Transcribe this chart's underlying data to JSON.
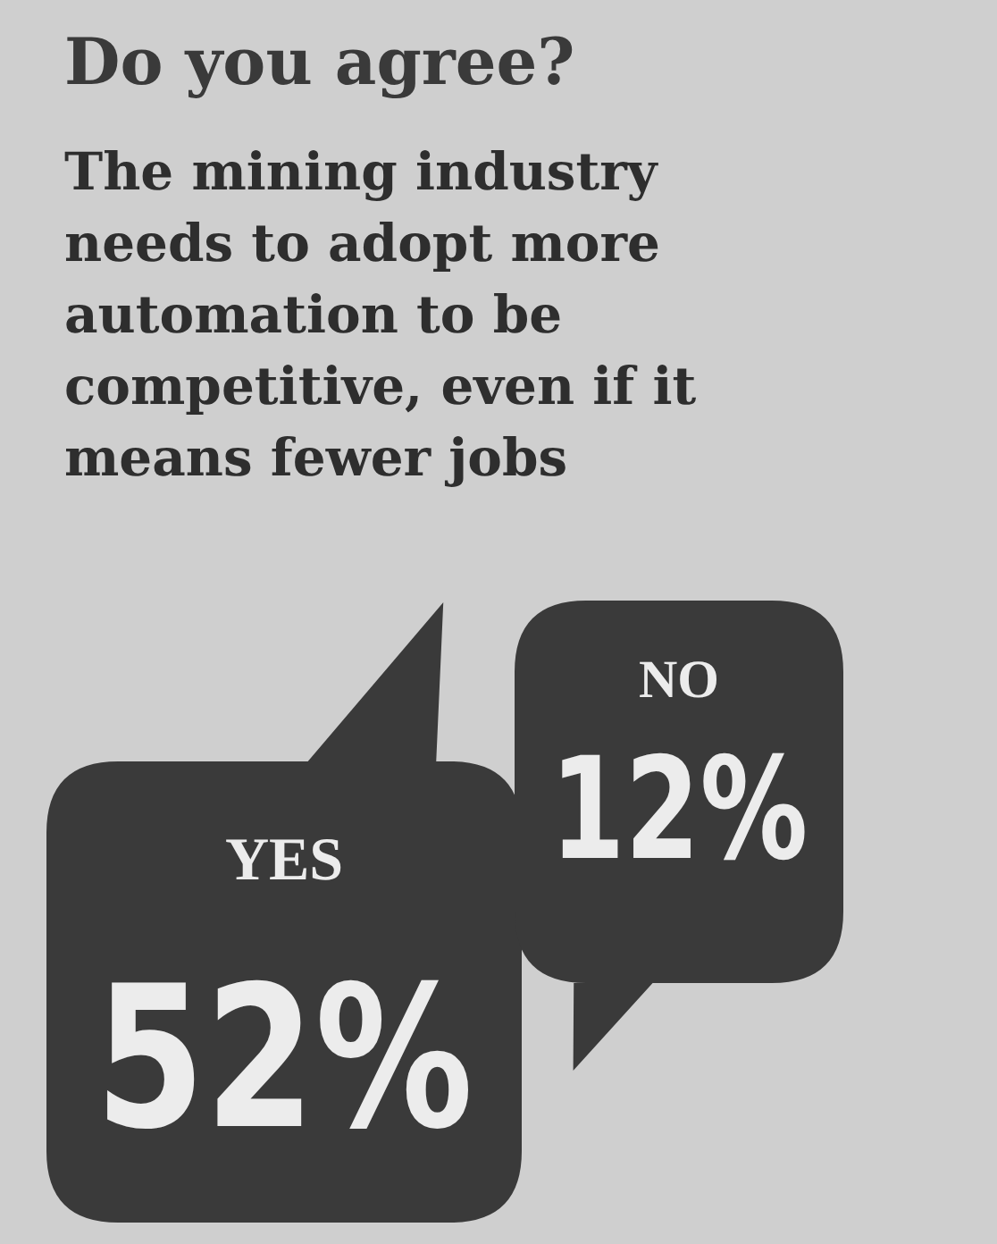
{
  "chart_data": {
    "type": "other",
    "title": "Do you agree?",
    "subtitle": "The mining industry needs to adopt more automation to be competitive, even if it means fewer jobs",
    "categories": [
      "YES",
      "NO"
    ],
    "values": [
      52,
      12
    ],
    "value_labels": [
      "52%",
      "12%"
    ],
    "colors": [
      "#3a3a3a",
      "#3a3a3a"
    ]
  }
}
